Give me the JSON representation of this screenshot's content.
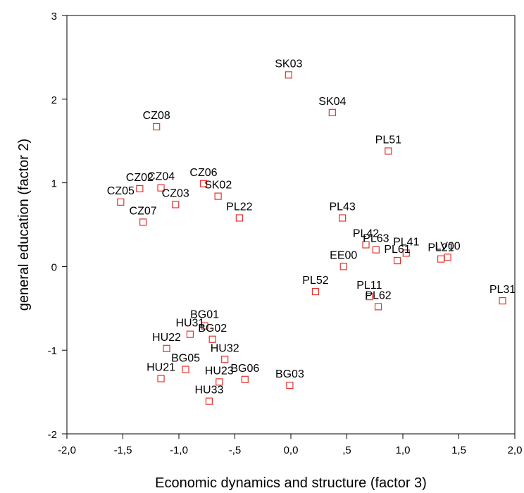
{
  "chart_data": {
    "type": "scatter",
    "title": "",
    "xlabel": "Economic dynamics and structure (factor 3)",
    "ylabel": "general education (factor 2)",
    "xlim": [
      -2.0,
      2.0
    ],
    "ylim": [
      -2,
      3
    ],
    "x_ticks": [
      {
        "value": -2.0,
        "label": "-2,0"
      },
      {
        "value": -1.5,
        "label": "-1,5"
      },
      {
        "value": -1.0,
        "label": "-1,0"
      },
      {
        "value": -0.5,
        "label": "-,5"
      },
      {
        "value": 0.0,
        "label": "0,0"
      },
      {
        "value": 0.5,
        "label": ",5"
      },
      {
        "value": 1.0,
        "label": "1,0"
      },
      {
        "value": 1.5,
        "label": "1,5"
      },
      {
        "value": 2.0,
        "label": "2,0"
      }
    ],
    "y_ticks": [
      {
        "value": -2,
        "label": "-2"
      },
      {
        "value": -1,
        "label": "-1"
      },
      {
        "value": 0,
        "label": "0"
      },
      {
        "value": 1,
        "label": "1"
      },
      {
        "value": 2,
        "label": "2"
      },
      {
        "value": 3,
        "label": "3"
      }
    ],
    "grid": false,
    "marker_color": "#e8312a",
    "points": [
      {
        "label": "SK03",
        "x": -0.02,
        "y": 2.29
      },
      {
        "label": "SK04",
        "x": 0.37,
        "y": 1.84
      },
      {
        "label": "PL51",
        "x": 0.87,
        "y": 1.38
      },
      {
        "label": "CZ08",
        "x": -1.2,
        "y": 1.67
      },
      {
        "label": "CZ02",
        "x": -1.35,
        "y": 0.93
      },
      {
        "label": "CZ04",
        "x": -1.16,
        "y": 0.94
      },
      {
        "label": "CZ06",
        "x": -0.78,
        "y": 0.99
      },
      {
        "label": "SK02",
        "x": -0.65,
        "y": 0.84
      },
      {
        "label": "CZ05",
        "x": -1.52,
        "y": 0.77
      },
      {
        "label": "CZ03",
        "x": -1.03,
        "y": 0.74
      },
      {
        "label": "CZ07",
        "x": -1.32,
        "y": 0.53
      },
      {
        "label": "PL22",
        "x": -0.46,
        "y": 0.58
      },
      {
        "label": "PL43",
        "x": 0.46,
        "y": 0.58
      },
      {
        "label": "PL42",
        "x": 0.67,
        "y": 0.26
      },
      {
        "label": "PL63",
        "x": 0.76,
        "y": 0.2
      },
      {
        "label": "PL41",
        "x": 1.03,
        "y": 0.16
      },
      {
        "label": "PL61",
        "x": 0.95,
        "y": 0.07
      },
      {
        "label": "PL21",
        "x": 1.34,
        "y": 0.09
      },
      {
        "label": "LV00",
        "x": 1.4,
        "y": 0.11
      },
      {
        "label": "EE00",
        "x": 0.47,
        "y": 0.0
      },
      {
        "label": "PL52",
        "x": 0.22,
        "y": -0.3
      },
      {
        "label": "PL11",
        "x": 0.7,
        "y": -0.36
      },
      {
        "label": "PL62",
        "x": 0.78,
        "y": -0.48
      },
      {
        "label": "PL31",
        "x": 1.89,
        "y": -0.41
      },
      {
        "label": "BG01",
        "x": -0.77,
        "y": -0.71
      },
      {
        "label": "HU31",
        "x": -0.9,
        "y": -0.81
      },
      {
        "label": "BG02",
        "x": -0.7,
        "y": -0.87
      },
      {
        "label": "HU22",
        "x": -1.11,
        "y": -0.98
      },
      {
        "label": "HU32",
        "x": -0.59,
        "y": -1.11
      },
      {
        "label": "BG05",
        "x": -0.94,
        "y": -1.23
      },
      {
        "label": "HU21",
        "x": -1.16,
        "y": -1.34
      },
      {
        "label": "HU23",
        "x": -0.64,
        "y": -1.38
      },
      {
        "label": "BG06",
        "x": -0.41,
        "y": -1.35
      },
      {
        "label": "BG03",
        "x": -0.01,
        "y": -1.42
      },
      {
        "label": "HU33",
        "x": -0.73,
        "y": -1.61
      }
    ]
  }
}
